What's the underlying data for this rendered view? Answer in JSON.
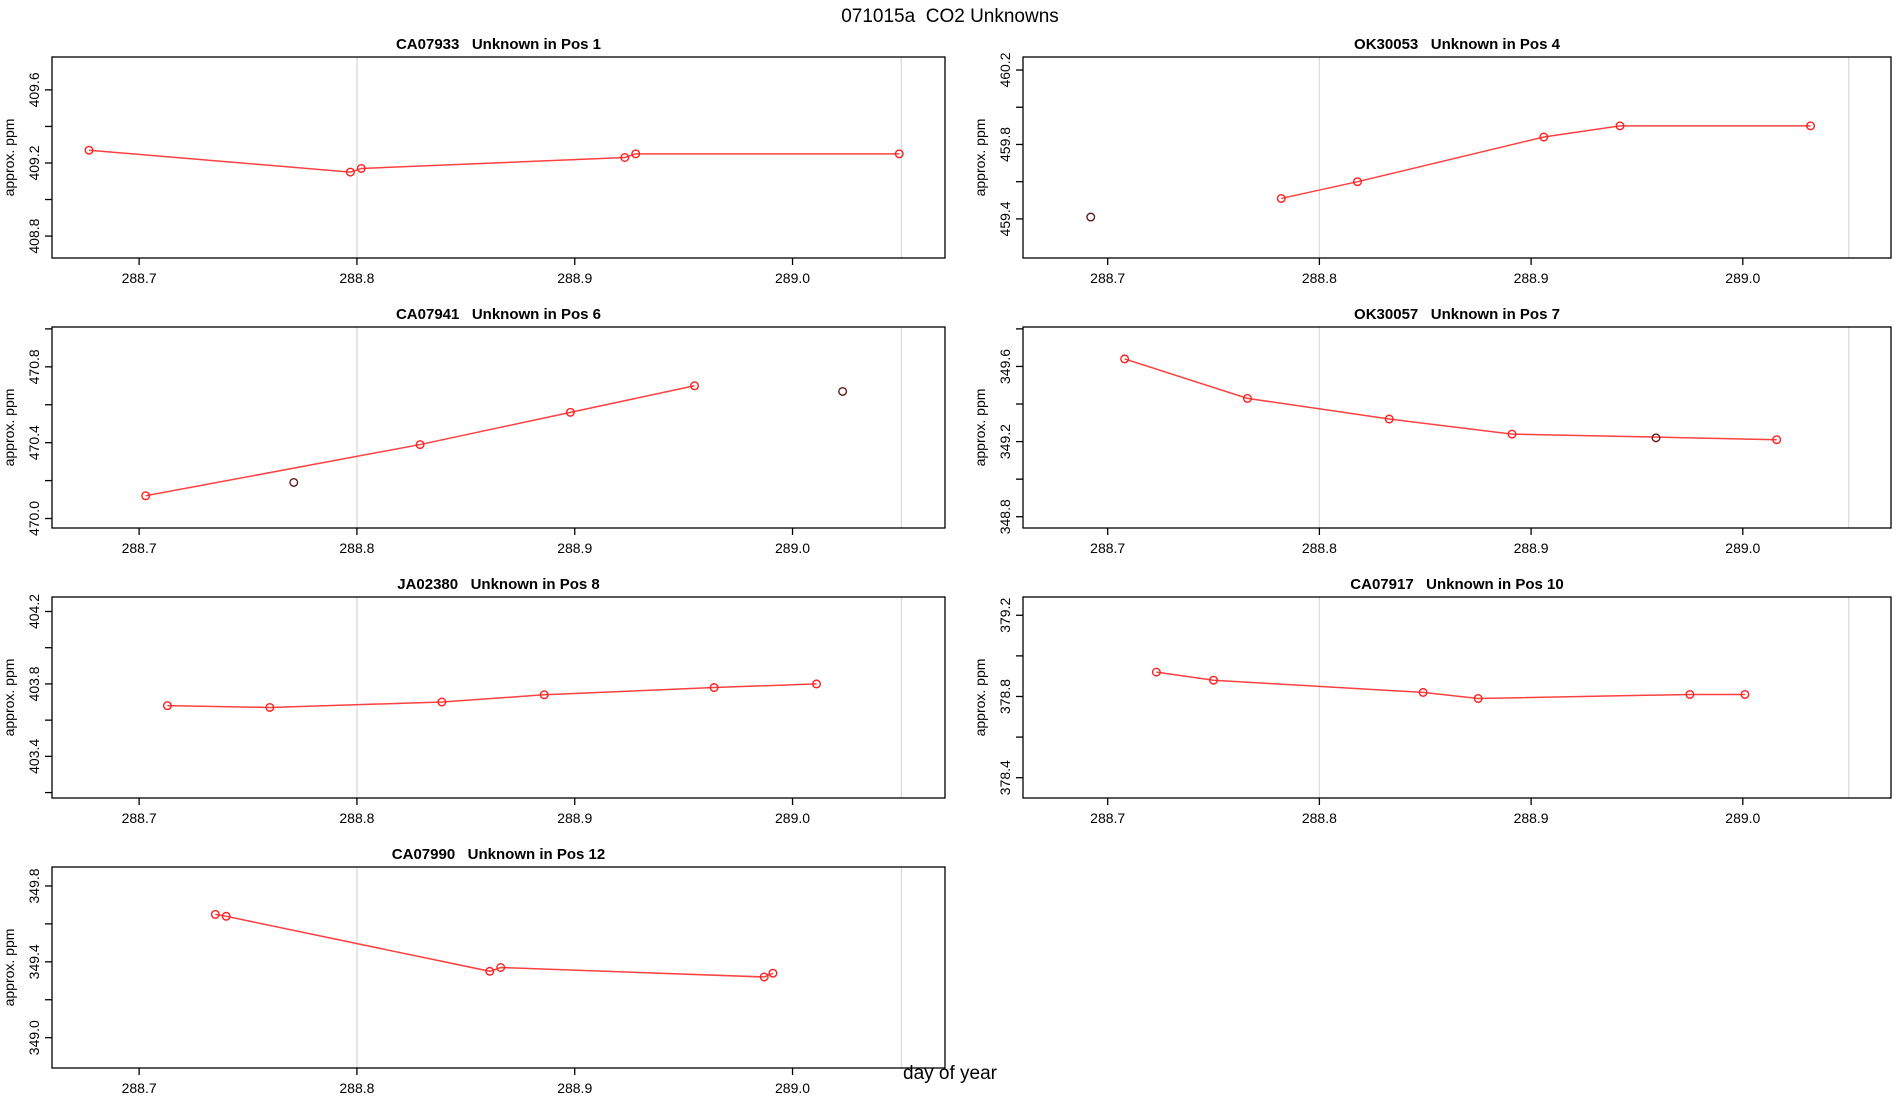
{
  "figure": {
    "title": "071015a  CO2 Unknowns",
    "x_axis_label": "day of year"
  },
  "colors": {
    "line": "#ff4040",
    "point": "#ff1f1f",
    "flagged_point": "#5f1a1a",
    "gridline": "#dcdcdc",
    "axis": "#000000"
  },
  "chart_data": [
    {
      "type": "line",
      "title": "CA07933   Unknown in Pos 1",
      "ylabel": "approx. ppm",
      "grid": [
        0,
        0
      ],
      "xlim": [
        288.66,
        289.07
      ],
      "ylim": [
        408.68,
        409.78
      ],
      "xticks": [
        288.7,
        288.8,
        288.9,
        289.0
      ],
      "xtick_labels": [
        "288.7",
        "288.8",
        "288.9",
        "289.0"
      ],
      "yticks": [
        408.8,
        409.0,
        409.2,
        409.4,
        409.6
      ],
      "ytick_labels": [
        "408.8",
        "",
        "409.2",
        "",
        "409.6"
      ],
      "gridlines_x": [
        288.8,
        289.05
      ],
      "series": [
        {
          "name": "measurements",
          "style": "line+markers",
          "color_key": "point",
          "points": [
            [
              288.677,
              409.27
            ],
            [
              288.797,
              409.15
            ],
            [
              288.802,
              409.17
            ],
            [
              288.923,
              409.23
            ],
            [
              288.928,
              409.25
            ],
            [
              289.049,
              409.25
            ]
          ]
        }
      ]
    },
    {
      "type": "line",
      "title": "OK30053   Unknown in Pos 4",
      "ylabel": "approx. ppm",
      "grid": [
        0,
        1
      ],
      "xlim": [
        288.66,
        289.07
      ],
      "ylim": [
        459.19,
        460.27
      ],
      "xticks": [
        288.7,
        288.8,
        288.9,
        289.0
      ],
      "xtick_labels": [
        "288.7",
        "288.8",
        "288.9",
        "289.0"
      ],
      "yticks": [
        459.4,
        459.6,
        459.8,
        460.0,
        460.2
      ],
      "ytick_labels": [
        "459.4",
        "",
        "459.8",
        "",
        "460.2"
      ],
      "gridlines_x": [
        288.8,
        289.05
      ],
      "series": [
        {
          "name": "measurements",
          "style": "line+markers",
          "color_key": "point",
          "points": [
            [
              288.782,
              459.51
            ],
            [
              288.818,
              459.6
            ],
            [
              288.906,
              459.84
            ],
            [
              288.942,
              459.9
            ],
            [
              289.032,
              459.9
            ]
          ]
        },
        {
          "name": "flagged",
          "style": "markers",
          "color_key": "flagged_point",
          "points": [
            [
              288.692,
              459.41
            ]
          ]
        }
      ]
    },
    {
      "type": "line",
      "title": "CA07941   Unknown in Pos 6",
      "ylabel": "approx. ppm",
      "grid": [
        1,
        0
      ],
      "xlim": [
        288.66,
        289.07
      ],
      "ylim": [
        469.95,
        471.01
      ],
      "xticks": [
        288.7,
        288.8,
        288.9,
        289.0
      ],
      "xtick_labels": [
        "288.7",
        "288.8",
        "288.9",
        "289.0"
      ],
      "yticks": [
        470.0,
        470.2,
        470.4,
        470.6,
        470.8,
        471.0
      ],
      "ytick_labels": [
        "470.0",
        "",
        "470.4",
        "",
        "470.8",
        ""
      ],
      "gridlines_x": [
        288.8,
        289.05
      ],
      "series": [
        {
          "name": "measurements",
          "style": "line+markers",
          "color_key": "point",
          "points": [
            [
              288.703,
              470.12
            ],
            [
              288.829,
              470.39
            ],
            [
              288.898,
              470.56
            ],
            [
              288.955,
              470.7
            ]
          ]
        },
        {
          "name": "flagged",
          "style": "markers",
          "color_key": "flagged_point",
          "points": [
            [
              288.771,
              470.19
            ],
            [
              289.023,
              470.67
            ]
          ]
        }
      ]
    },
    {
      "type": "line",
      "title": "OK30057   Unknown in Pos 7",
      "ylabel": "approx. ppm",
      "grid": [
        1,
        1
      ],
      "xlim": [
        288.66,
        289.07
      ],
      "ylim": [
        348.74,
        349.81
      ],
      "xticks": [
        288.7,
        288.8,
        288.9,
        289.0
      ],
      "xtick_labels": [
        "288.7",
        "288.8",
        "288.9",
        "289.0"
      ],
      "yticks": [
        348.8,
        349.0,
        349.2,
        349.4,
        349.6,
        349.8
      ],
      "ytick_labels": [
        "348.8",
        "",
        "349.2",
        "",
        "349.6",
        ""
      ],
      "gridlines_x": [
        288.8,
        289.05
      ],
      "series": [
        {
          "name": "measurements",
          "style": "line+markers",
          "color_key": "point",
          "points": [
            [
              288.708,
              349.64
            ],
            [
              288.766,
              349.43
            ],
            [
              288.833,
              349.32
            ],
            [
              288.891,
              349.24
            ],
            [
              289.016,
              349.21
            ]
          ]
        },
        {
          "name": "flagged",
          "style": "markers",
          "color_key": "flagged_point",
          "points": [
            [
              288.959,
              349.22
            ]
          ]
        }
      ]
    },
    {
      "type": "line",
      "title": "JA02380   Unknown in Pos 8",
      "ylabel": "approx. ppm",
      "grid": [
        2,
        0
      ],
      "xlim": [
        288.66,
        289.07
      ],
      "ylim": [
        403.17,
        404.28
      ],
      "xticks": [
        288.7,
        288.8,
        288.9,
        289.0
      ],
      "xtick_labels": [
        "288.7",
        "288.8",
        "288.9",
        "289.0"
      ],
      "yticks": [
        403.2,
        403.4,
        403.6,
        403.8,
        404.0,
        404.2
      ],
      "ytick_labels": [
        "",
        "403.4",
        "",
        "403.8",
        "",
        "404.2"
      ],
      "gridlines_x": [
        288.8,
        289.05
      ],
      "series": [
        {
          "name": "measurements",
          "style": "line+markers",
          "color_key": "point",
          "points": [
            [
              288.713,
              403.68
            ],
            [
              288.76,
              403.67
            ],
            [
              288.839,
              403.7
            ],
            [
              288.886,
              403.74
            ],
            [
              288.964,
              403.78
            ],
            [
              289.011,
              403.8
            ]
          ]
        }
      ]
    },
    {
      "type": "line",
      "title": "CA07917   Unknown in Pos 10",
      "ylabel": "approx. ppm",
      "grid": [
        2,
        1
      ],
      "xlim": [
        288.66,
        289.07
      ],
      "ylim": [
        378.3,
        379.29
      ],
      "xticks": [
        288.7,
        288.8,
        288.9,
        289.0
      ],
      "xtick_labels": [
        "288.7",
        "288.8",
        "288.9",
        "289.0"
      ],
      "yticks": [
        378.4,
        378.6,
        378.8,
        379.0,
        379.2
      ],
      "ytick_labels": [
        "378.4",
        "",
        "378.8",
        "",
        "379.2"
      ],
      "gridlines_x": [
        288.8,
        289.05
      ],
      "series": [
        {
          "name": "measurements",
          "style": "line+markers",
          "color_key": "point",
          "points": [
            [
              288.723,
              378.92
            ],
            [
              288.75,
              378.88
            ],
            [
              288.849,
              378.82
            ],
            [
              288.875,
              378.79
            ],
            [
              288.975,
              378.81
            ],
            [
              289.001,
              378.81
            ]
          ]
        }
      ]
    },
    {
      "type": "line",
      "title": "CA07990   Unknown in Pos 12",
      "ylabel": "approx. ppm",
      "grid": [
        3,
        0
      ],
      "xlim": [
        288.66,
        289.07
      ],
      "ylim": [
        348.84,
        349.9
      ],
      "xticks": [
        288.7,
        288.8,
        288.9,
        289.0
      ],
      "xtick_labels": [
        "288.7",
        "288.8",
        "288.9",
        "289.0"
      ],
      "yticks": [
        349.0,
        349.2,
        349.4,
        349.6,
        349.8
      ],
      "ytick_labels": [
        "349.0",
        "",
        "349.4",
        "",
        "349.8"
      ],
      "gridlines_x": [
        288.8,
        289.05
      ],
      "series": [
        {
          "name": "measurements",
          "style": "line+markers",
          "color_key": "point",
          "points": [
            [
              288.735,
              349.65
            ],
            [
              288.74,
              349.64
            ],
            [
              288.861,
              349.35
            ],
            [
              288.866,
              349.37
            ],
            [
              288.987,
              349.32
            ],
            [
              288.991,
              349.34
            ]
          ]
        }
      ]
    }
  ]
}
